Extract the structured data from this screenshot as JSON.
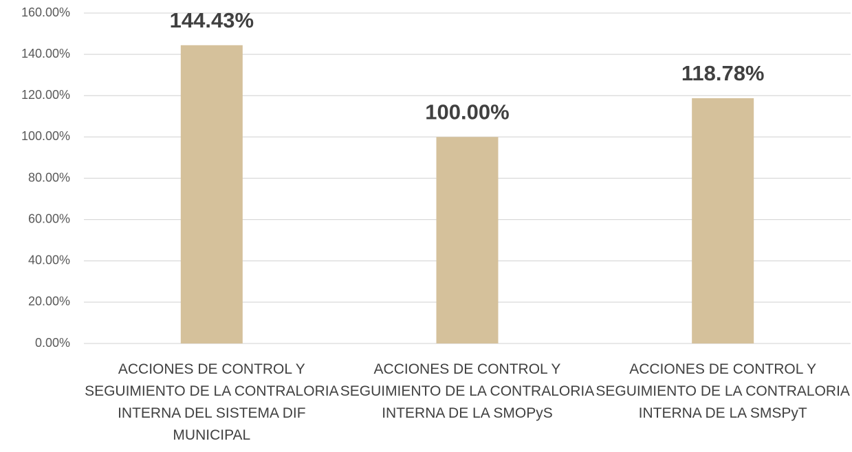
{
  "chart_data": {
    "type": "bar",
    "categories": [
      "ACCIONES DE CONTROL Y SEGUIMIENTO DE LA CONTRALORIA INTERNA DEL SISTEMA DIF MUNICIPAL",
      "ACCIONES DE CONTROL Y SEGUIMIENTO DE LA CONTRALORIA INTERNA DE LA SMOPyS",
      "ACCIONES DE CONTROL Y SEGUIMIENTO DE LA CONTRALORIA INTERNA DE LA SMSPyT"
    ],
    "values": [
      144.43,
      100,
      118.78
    ],
    "value_labels": [
      "144.43%",
      "100.00%",
      "118.78%"
    ],
    "color": "#d5c19b",
    "ylim": [
      0,
      160
    ],
    "yticks": [
      {
        "value": 0,
        "label": "0.00%"
      },
      {
        "value": 20,
        "label": "20.00%"
      },
      {
        "value": 40,
        "label": "40.00%"
      },
      {
        "value": 60,
        "label": "60.00%"
      },
      {
        "value": 80,
        "label": "80.00%"
      },
      {
        "value": 100,
        "label": "100.00%"
      },
      {
        "value": 120,
        "label": "120.00%"
      },
      {
        "value": 140,
        "label": "140.00%"
      },
      {
        "value": 160,
        "label": "160.00%"
      }
    ],
    "grid": true
  }
}
